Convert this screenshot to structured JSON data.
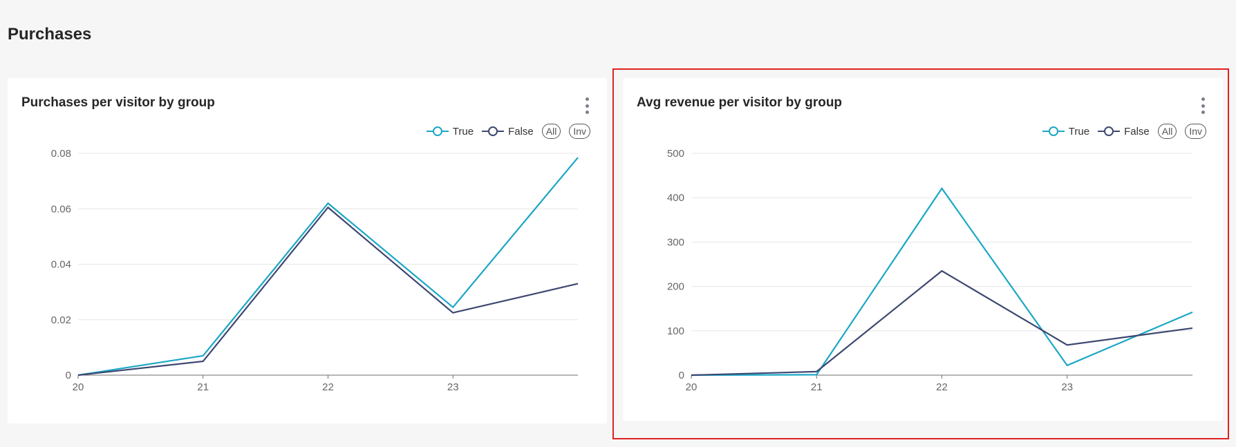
{
  "section": {
    "title": "Purchases"
  },
  "colors": {
    "true_series": "#1aa6c4",
    "false_series": "#3d4770",
    "grid": "#e6e6e6",
    "axis": "#6e6e6e"
  },
  "legend": {
    "all_label": "All",
    "inv_label": "Inv"
  },
  "charts": {
    "left": {
      "menu_icon": "kebab-menu-icon",
      "chart_data": {
        "type": "line",
        "title": "Purchases per visitor by group",
        "x": [
          20,
          21,
          22,
          23,
          24
        ],
        "x_tick_labels": [
          "20",
          "21",
          "22",
          "23"
        ],
        "y_tick_values": [
          0,
          0.02,
          0.04,
          0.06,
          0.08
        ],
        "y_tick_labels": [
          "0",
          "0.02",
          "0.04",
          "0.06",
          "0.08"
        ],
        "ylim": [
          0,
          0.08
        ],
        "series": [
          {
            "name": "True",
            "values": [
              0,
              0.007,
              0.062,
              0.0245,
              0.0785
            ]
          },
          {
            "name": "False",
            "values": [
              0,
              0.005,
              0.0605,
              0.0225,
              0.033
            ]
          }
        ]
      }
    },
    "right": {
      "menu_icon": "kebab-menu-icon",
      "chart_data": {
        "type": "line",
        "title": "Avg revenue per visitor by group",
        "x": [
          20,
          21,
          22,
          23,
          24
        ],
        "x_tick_labels": [
          "20",
          "21",
          "22",
          "23"
        ],
        "y_tick_values": [
          0,
          100,
          200,
          300,
          400,
          500
        ],
        "y_tick_labels": [
          "0",
          "100",
          "200",
          "300",
          "400",
          "500"
        ],
        "ylim": [
          0,
          500
        ],
        "series": [
          {
            "name": "True",
            "values": [
              0,
              1,
              421,
              22,
              142
            ]
          },
          {
            "name": "False",
            "values": [
              0,
              8,
              235,
              68,
              106
            ]
          }
        ]
      }
    }
  }
}
